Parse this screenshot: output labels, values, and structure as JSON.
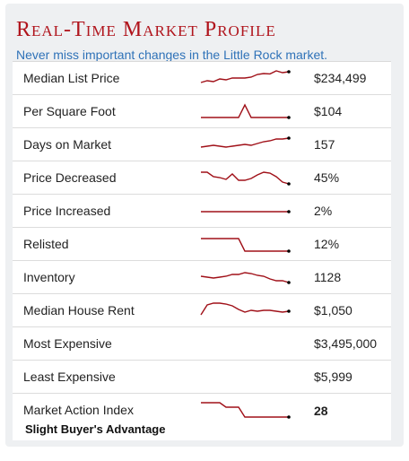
{
  "header": {
    "title": "Real-Time Market Profile",
    "subtitle": "Never miss important changes in the Little Rock market."
  },
  "colors": {
    "title": "#b0141c",
    "subtitle": "#2f72b8",
    "sparkline": "#a01018",
    "endpoint": "#000000"
  },
  "rows": [
    {
      "label": "Median List Price",
      "value": "$234,499",
      "spark": [
        0.3,
        0.4,
        0.35,
        0.5,
        0.45,
        0.55,
        0.55,
        0.55,
        0.6,
        0.75,
        0.8,
        0.78,
        0.95,
        0.85,
        0.9
      ]
    },
    {
      "label": "Per Square Foot",
      "value": "$104",
      "spark": [
        0.2,
        0.2,
        0.2,
        0.2,
        0.2,
        0.2,
        0.2,
        0.9,
        0.2,
        0.2,
        0.2,
        0.2,
        0.2,
        0.2,
        0.2
      ]
    },
    {
      "label": "Days on Market",
      "value": "157",
      "spark": [
        0.4,
        0.45,
        0.5,
        0.45,
        0.4,
        0.45,
        0.5,
        0.55,
        0.5,
        0.6,
        0.7,
        0.75,
        0.85,
        0.85,
        0.9
      ]
    },
    {
      "label": "Price Decreased",
      "value": "45%",
      "spark": [
        0.85,
        0.85,
        0.6,
        0.55,
        0.45,
        0.75,
        0.4,
        0.4,
        0.5,
        0.7,
        0.85,
        0.8,
        0.6,
        0.3,
        0.2
      ]
    },
    {
      "label": "Price Increased",
      "value": "2%",
      "spark": [
        0.5,
        0.5,
        0.5,
        0.5,
        0.5,
        0.5,
        0.5,
        0.5,
        0.5,
        0.5,
        0.5,
        0.5,
        0.5,
        0.5,
        0.5
      ]
    },
    {
      "label": "Relisted",
      "value": "12%",
      "spark": [
        0.85,
        0.85,
        0.85,
        0.85,
        0.85,
        0.85,
        0.85,
        0.15,
        0.15,
        0.15,
        0.15,
        0.15,
        0.15,
        0.15,
        0.15
      ]
    },
    {
      "label": "Inventory",
      "value": "1128",
      "spark": [
        0.6,
        0.55,
        0.5,
        0.55,
        0.6,
        0.7,
        0.7,
        0.8,
        0.75,
        0.65,
        0.6,
        0.45,
        0.35,
        0.35,
        0.25
      ]
    },
    {
      "label": "Median House Rent",
      "value": "$1,050",
      "spark": [
        0.3,
        0.85,
        0.95,
        0.95,
        0.9,
        0.8,
        0.6,
        0.45,
        0.55,
        0.5,
        0.55,
        0.55,
        0.5,
        0.45,
        0.5
      ]
    },
    {
      "label": "Most Expensive",
      "value": "$3,495,000",
      "spark": []
    },
    {
      "label": "Least Expensive",
      "value": "$5,999",
      "spark": []
    },
    {
      "label": "Market Action Index",
      "value": "28",
      "spark": [
        0.95,
        0.95,
        0.95,
        0.95,
        0.7,
        0.7,
        0.7,
        0.15,
        0.15,
        0.15,
        0.15,
        0.15,
        0.15,
        0.15,
        0.15
      ],
      "note": "Slight Buyer's Advantage"
    }
  ]
}
